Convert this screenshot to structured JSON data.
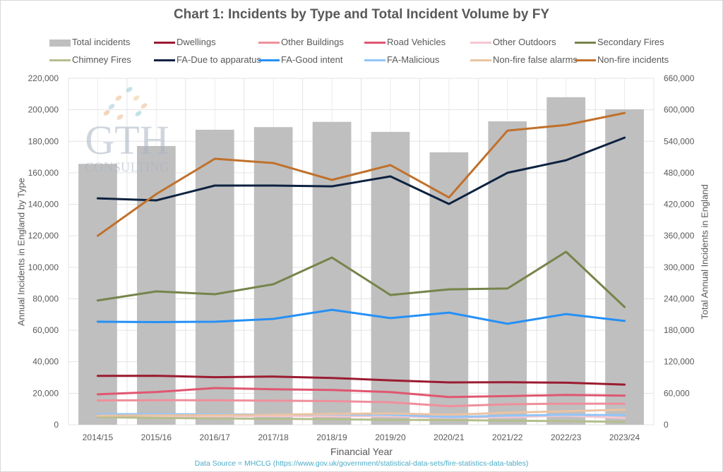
{
  "chart_data": {
    "type": "bar+line",
    "title": "Chart 1: Incidents by Type and Total Incident Volume by FY",
    "xlabel": "Financial Year",
    "ylabel_left": "Annual Incidents in England by Type",
    "ylabel_right": "Total Annual Incidents in England",
    "source": "Data Source = MHCLG (https://www.gov.uk/government/statistical-data-sets/fire-statistics-data-tables)",
    "categories": [
      "2014/15",
      "2015/16",
      "2016/17",
      "2017/18",
      "2018/19",
      "2019/20",
      "2020/21",
      "2021/22",
      "2022/23",
      "2023/24"
    ],
    "ylim_left": [
      0,
      220000
    ],
    "ylim_right": [
      0,
      660000
    ],
    "yticks_left": [
      "0",
      "20,000",
      "40,000",
      "60,000",
      "80,000",
      "100,000",
      "120,000",
      "140,000",
      "160,000",
      "180,000",
      "200,000",
      "220,000"
    ],
    "yticks_right": [
      "0",
      "60,000",
      "120,000",
      "180,000",
      "240,000",
      "300,000",
      "360,000",
      "420,000",
      "480,000",
      "540,000",
      "600,000",
      "660,000"
    ],
    "grid": true,
    "legend_position": "top",
    "bar_series": {
      "name": "Total incidents",
      "color": "#bfbfbf",
      "axis": "right",
      "values": [
        497000,
        531000,
        562000,
        567000,
        577000,
        558000,
        519000,
        578000,
        624000,
        601000
      ]
    },
    "series": [
      {
        "name": "Dwellings",
        "color": "#9b1b30",
        "axis": "left",
        "values": [
          31000,
          31100,
          30200,
          30600,
          29700,
          28200,
          26900,
          27000,
          26700,
          25500
        ]
      },
      {
        "name": "Other Buildings",
        "color": "#ef8f9c",
        "axis": "left",
        "values": [
          15400,
          15600,
          15500,
          15300,
          15000,
          14300,
          11800,
          13000,
          13400,
          13300
        ]
      },
      {
        "name": "Road Vehicles",
        "color": "#e05670",
        "axis": "left",
        "values": [
          19300,
          20800,
          23300,
          22500,
          22100,
          20700,
          17600,
          18200,
          18900,
          18500
        ]
      },
      {
        "name": "Other Outdoors",
        "color": "#f6c6d0",
        "axis": "left",
        "values": [
          5100,
          5300,
          5400,
          5600,
          5500,
          5400,
          4500,
          4900,
          5800,
          4300
        ]
      },
      {
        "name": "Secondary Fires",
        "color": "#76844a",
        "axis": "left",
        "values": [
          78900,
          84700,
          82900,
          89200,
          106200,
          82400,
          86000,
          86500,
          109800,
          74800
        ]
      },
      {
        "name": "Chimney Fires",
        "color": "#b4bf8d",
        "axis": "left",
        "values": [
          4800,
          4300,
          4000,
          3800,
          3500,
          3100,
          3000,
          2600,
          2300,
          1800
        ]
      },
      {
        "name": "FA-Due to apparatus",
        "color": "#0d2240",
        "axis": "left",
        "values": [
          143800,
          142500,
          151900,
          151900,
          151400,
          157700,
          140200,
          160000,
          168000,
          182300
        ]
      },
      {
        "name": "FA-Good intent",
        "color": "#2690f5",
        "axis": "left",
        "values": [
          65400,
          65200,
          65400,
          67200,
          73000,
          67700,
          71200,
          64100,
          70300,
          65900
        ]
      },
      {
        "name": "FA-Malicious",
        "color": "#92c5f7",
        "axis": "left",
        "values": [
          6700,
          6700,
          6600,
          6500,
          6500,
          6300,
          4900,
          5800,
          6300,
          6100
        ]
      },
      {
        "name": "Non-fire false alarms",
        "color": "#ebc3a3",
        "axis": "left",
        "values": [
          5800,
          5900,
          6100,
          6400,
          6800,
          7200,
          6300,
          7600,
          8600,
          9500
        ]
      },
      {
        "name": "Non-fire incidents",
        "color": "#c0712c",
        "axis": "left",
        "values": [
          120000,
          146500,
          168900,
          166200,
          155500,
          164900,
          144300,
          186800,
          190400,
          198000
        ]
      }
    ],
    "watermark": {
      "line1": "GTH",
      "line2": "CONSULTING"
    }
  }
}
